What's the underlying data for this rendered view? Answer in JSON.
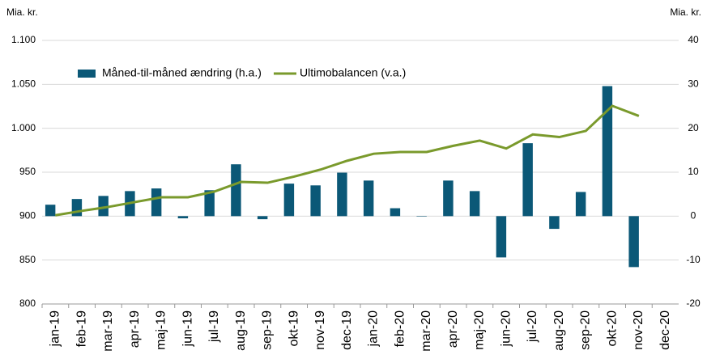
{
  "chart_data": {
    "type": "bar_line",
    "ylabel": "Mia. kr.",
    "y2label": "Mia. kr.",
    "categories": [
      "jan-19",
      "feb-19",
      "mar-19",
      "apr-19",
      "maj-19",
      "jun-19",
      "jul-19",
      "aug-19",
      "sep-19",
      "okt-19",
      "nov-19",
      "dec-19",
      "jan-20",
      "feb-20",
      "mar-20",
      "apr-20",
      "maj-20",
      "jun-20",
      "jul-20",
      "aug-20",
      "sep-20",
      "okt-20",
      "nov-20",
      "dec-20"
    ],
    "series": [
      {
        "name": "Måned-til-måned ændring (h.a.)",
        "type": "bar",
        "axis": "y2",
        "color": "#0b5877",
        "values": [
          2.6,
          3.9,
          4.6,
          5.7,
          6.3,
          -0.5,
          5.9,
          11.8,
          -0.7,
          7.4,
          7.0,
          9.9,
          8.1,
          1.8,
          -0.1,
          8.1,
          5.7,
          -9.4,
          16.6,
          -2.9,
          5.5,
          29.6,
          -11.6,
          null
        ]
      },
      {
        "name": "Ultimobalancen (v.a.)",
        "type": "line",
        "axis": "y",
        "color": "#7a9a2c",
        "values": [
          901,
          906,
          910.5,
          916,
          921.5,
          921.5,
          928,
          939,
          938,
          945,
          953,
          963,
          971,
          973,
          973,
          980,
          986,
          977,
          993,
          990,
          997,
          1025.5,
          1014,
          null
        ]
      }
    ],
    "ylim": [
      800,
      1100
    ],
    "yticks": [
      800,
      850,
      900,
      950,
      {
        "value": 1000,
        "label": "1.000"
      },
      {
        "value": 1050,
        "label": "1.050"
      },
      {
        "value": 1100,
        "label": "1.100"
      }
    ],
    "y2lim": [
      -20,
      40
    ],
    "y2ticks": [
      -20,
      -10,
      0,
      10,
      20,
      30,
      40
    ],
    "grid": true,
    "legend": "top"
  }
}
